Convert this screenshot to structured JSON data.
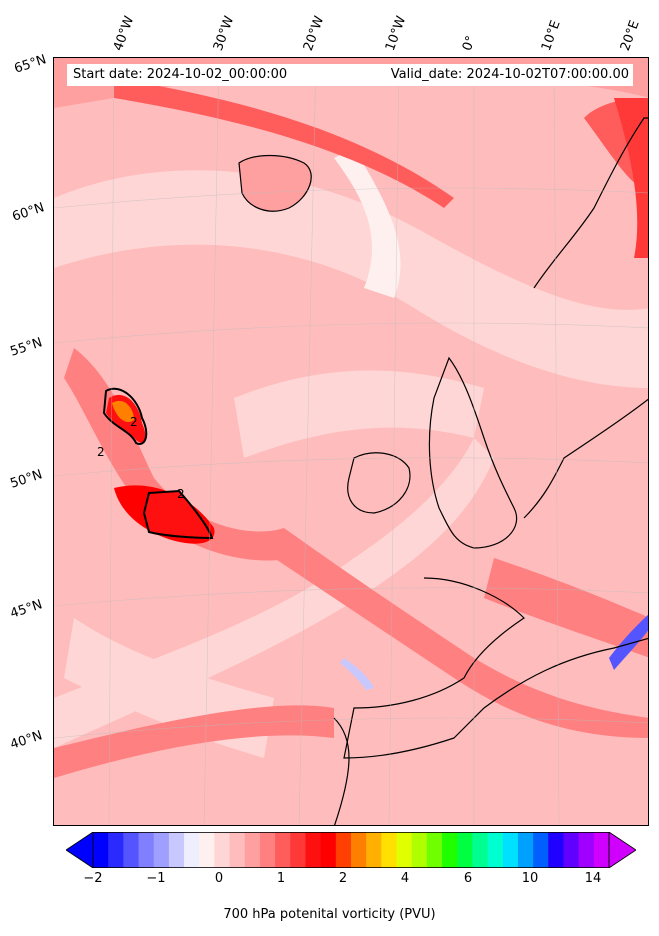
{
  "header": {
    "start_date": "Start date: 2024-10-02_00:00:00",
    "valid_date": "Valid_date: 2024-10-02T07:00:00.00"
  },
  "longitude_labels": [
    "40°W",
    "30°W",
    "20°W",
    "10°W",
    "0°",
    "10°E",
    "20°E"
  ],
  "latitude_labels": [
    "65°N",
    "60°N",
    "55°N",
    "50°N",
    "45°N",
    "40°N"
  ],
  "contour_labels": [
    "2",
    "2",
    "2"
  ],
  "colorbar": {
    "tick_labels": [
      "−2",
      "−1",
      "0",
      "1",
      "2",
      "4",
      "6",
      "10",
      "14"
    ],
    "title": "700 hPa potenital vorticity (PVU)",
    "colors": [
      "#0000ff",
      "#2a2aff",
      "#5555ff",
      "#7f7fff",
      "#9f9fff",
      "#c8c8ff",
      "#eeeeff",
      "#fff0f0",
      "#ffd6d6",
      "#ffbcbc",
      "#ffa0a0",
      "#ff8080",
      "#ff5c5c",
      "#ff3838",
      "#ff1010",
      "#ff0000",
      "#ff4000",
      "#ff8000",
      "#ffb000",
      "#ffe000",
      "#e0ff00",
      "#b0ff00",
      "#70ff00",
      "#20ff00",
      "#00ff40",
      "#00ff90",
      "#00ffd0",
      "#00e0ff",
      "#00a0ff",
      "#0060ff",
      "#2000ff",
      "#6000ff",
      "#a000ff",
      "#d000ff"
    ]
  }
}
